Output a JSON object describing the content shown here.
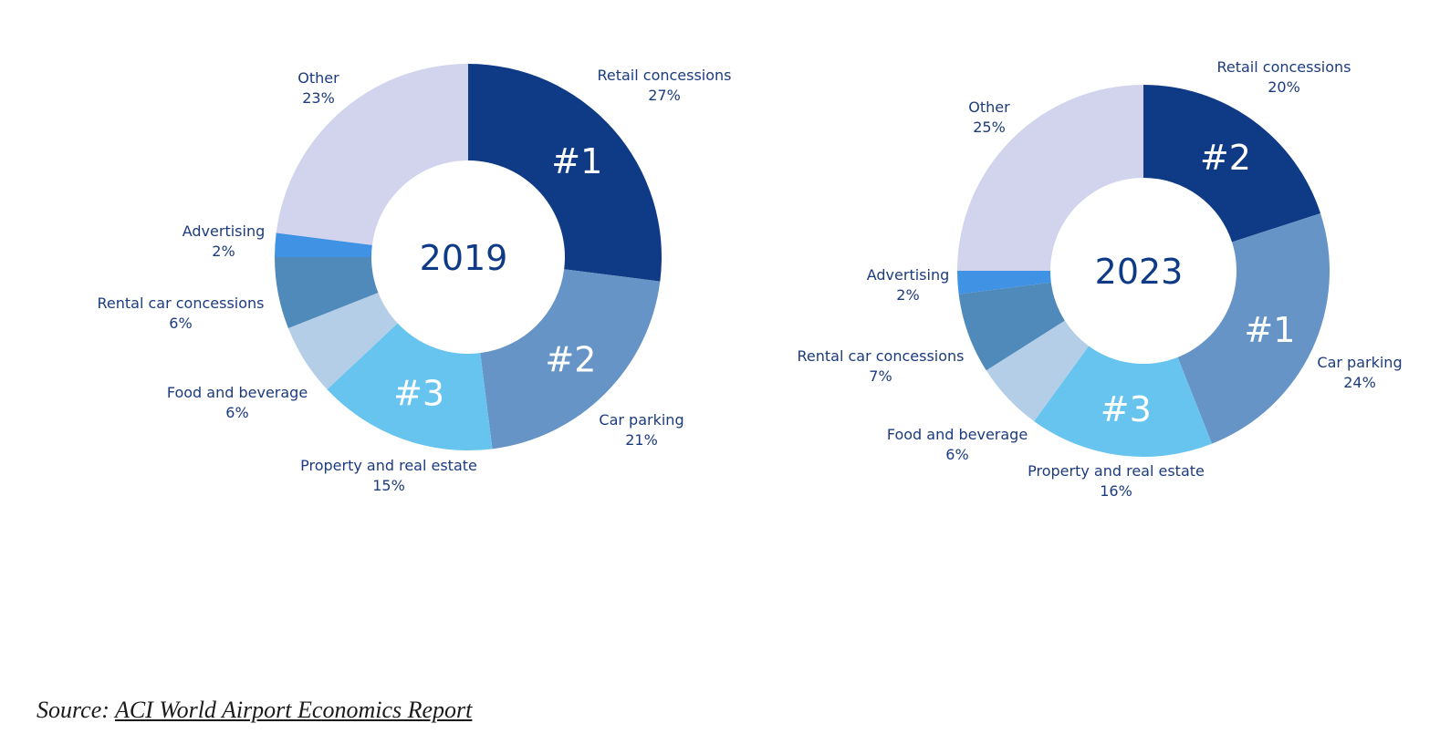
{
  "chart_data": [
    {
      "type": "pie",
      "title": "2019",
      "categories": [
        "Retail concessions",
        "Car parking",
        "Property and real estate",
        "Food and beverage",
        "Rental car concessions",
        "Advertising",
        "Other"
      ],
      "values": [
        27,
        21,
        15,
        6,
        6,
        2,
        23
      ],
      "value_labels": [
        "27%",
        "21%",
        "15%",
        "6%",
        "6%",
        "2%",
        "23%"
      ],
      "ranks": [
        "#1",
        "#2",
        "#3",
        "",
        "",
        "",
        ""
      ],
      "colors": [
        "#0f3a85",
        "#6694c6",
        "#66c4ee",
        "#b4cee8",
        "#508aba",
        "#3f92e4",
        "#d2d4ee"
      ]
    },
    {
      "type": "pie",
      "title": "2023",
      "categories": [
        "Retail concessions",
        "Car parking",
        "Property and real estate",
        "Food and beverage",
        "Rental car concessions",
        "Advertising",
        "Other"
      ],
      "values": [
        20,
        24,
        16,
        6,
        7,
        2,
        25
      ],
      "value_labels": [
        "20%",
        "24%",
        "16%",
        "6%",
        "7%",
        "2%",
        "25%"
      ],
      "ranks": [
        "#2",
        "#1",
        "#3",
        "",
        "",
        "",
        ""
      ],
      "colors": [
        "#0f3a85",
        "#6694c6",
        "#66c4ee",
        "#b4cee8",
        "#508aba",
        "#3f92e4",
        "#d2d4ee"
      ]
    }
  ],
  "source": {
    "prefix": "Source:",
    "link_text": "ACI World Airport Economics Report"
  }
}
